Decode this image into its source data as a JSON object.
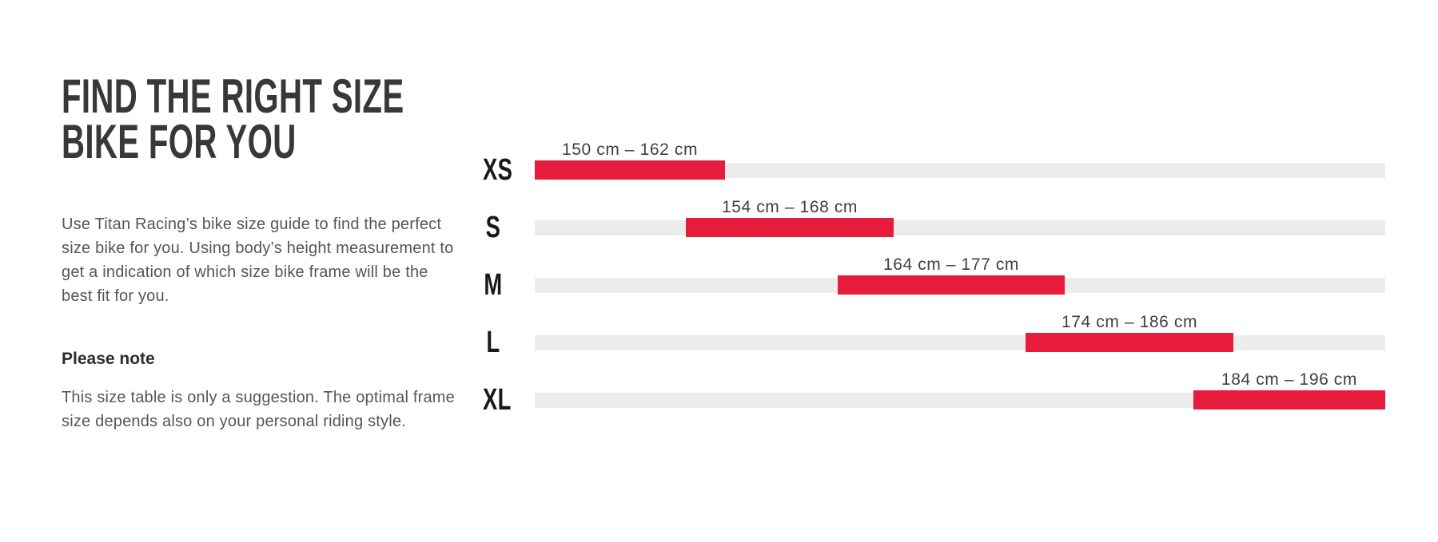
{
  "page": {
    "background": "#ffffff"
  },
  "intro": {
    "heading_line1": "FIND THE RIGHT SIZE",
    "heading_line2": "BIKE FOR YOU",
    "paragraph": "Use Titan Racing’s bike size guide to find the perfect size bike for you. Using body’s height measurement to get a indication of which size bike frame will be the best fit for you.",
    "note_heading": "Please note",
    "note_paragraph": "This size table is only a suggestion. The optimal frame size depends also on your personal riding style."
  },
  "chart_data": {
    "type": "bar",
    "orientation": "horizontal-range",
    "title": "",
    "xlabel": "",
    "ylabel": "",
    "unit": "cm",
    "axis_range_cm": [
      150,
      196
    ],
    "grid": false,
    "legend": false,
    "categories": [
      "XS",
      "S",
      "M",
      "L",
      "XL"
    ],
    "rows": [
      {
        "size": "XS",
        "label": "150 cm – 162 cm",
        "min_cm": 150,
        "max_cm": 162,
        "bar_start_pct": 0,
        "bar_end_pct": 22.37
      },
      {
        "size": "S",
        "label": "154 cm – 168 cm",
        "min_cm": 154,
        "max_cm": 168,
        "bar_start_pct": 17.76,
        "bar_end_pct": 42.2
      },
      {
        "size": "M",
        "label": "164 cm – 177 cm",
        "min_cm": 164,
        "max_cm": 177,
        "bar_start_pct": 35.62,
        "bar_end_pct": 62.31
      },
      {
        "size": "L",
        "label": "174 cm – 186 cm",
        "min_cm": 174,
        "max_cm": 186,
        "bar_start_pct": 57.71,
        "bar_end_pct": 82.14
      },
      {
        "size": "XL",
        "label": "184 cm – 196 cm",
        "min_cm": 184,
        "max_cm": 196,
        "bar_start_pct": 77.44,
        "bar_end_pct": 100
      }
    ],
    "colors": {
      "bar": "#e71b3c",
      "track": "#ececec"
    }
  }
}
